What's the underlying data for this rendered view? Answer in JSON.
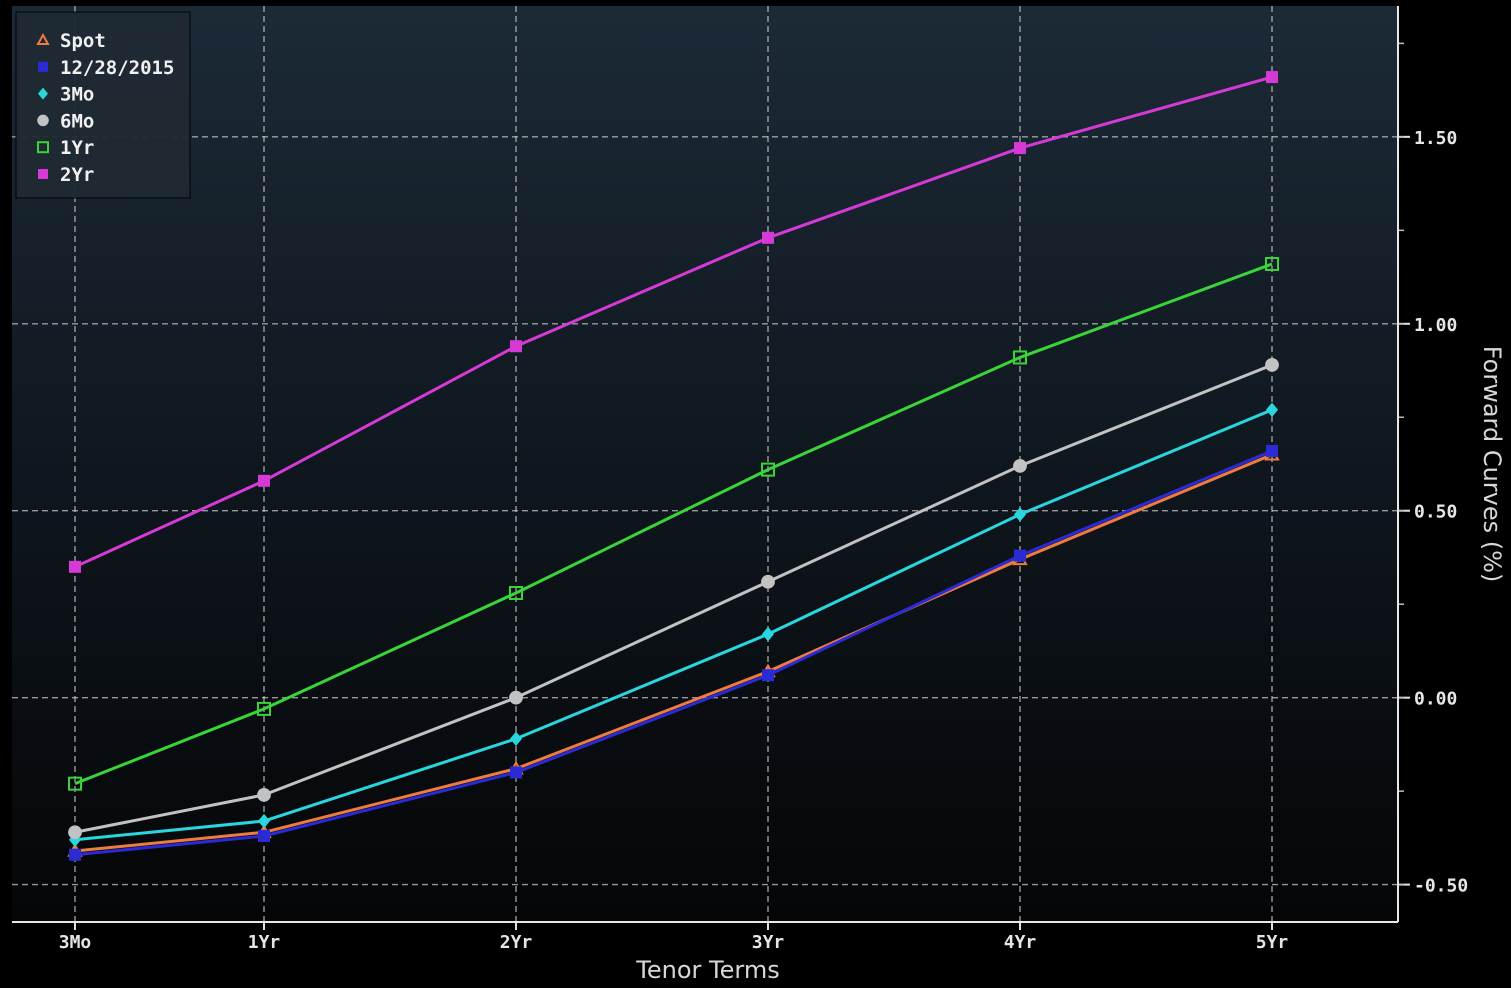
{
  "chart_data": {
    "type": "line",
    "xlabel": "Tenor Terms",
    "ylabel": "Forward Curves (%)",
    "categories": [
      "3Mo",
      "1Yr",
      "2Yr",
      "3Yr",
      "4Yr",
      "5Yr"
    ],
    "x_positions": [
      0.25,
      1,
      2,
      3,
      4,
      5
    ],
    "xlim": [
      0,
      5.5
    ],
    "ylim": [
      -0.6,
      1.85
    ],
    "yticks": [
      -0.5,
      0,
      0.5,
      1.0,
      1.5
    ],
    "ytick_labels": [
      "-0.50",
      "0.00",
      "0.50",
      "1.00",
      "1.50"
    ],
    "grid": true,
    "legend_position": "top-left",
    "series": [
      {
        "name": "Spot",
        "color": "#f07b3f",
        "marker": "triangle-open",
        "values": [
          -0.41,
          -0.36,
          -0.19,
          0.07,
          0.37,
          0.65
        ]
      },
      {
        "name": "12/28/2015",
        "color": "#2b2bd6",
        "marker": "square-filled",
        "values": [
          -0.42,
          -0.37,
          -0.2,
          0.06,
          0.38,
          0.66
        ]
      },
      {
        "name": "3Mo",
        "color": "#29d6de",
        "marker": "diamond",
        "values": [
          -0.38,
          -0.33,
          -0.11,
          0.17,
          0.49,
          0.77
        ]
      },
      {
        "name": "6Mo",
        "color": "#c2c2c2",
        "marker": "circle",
        "values": [
          -0.36,
          -0.26,
          0.0,
          0.31,
          0.62,
          0.89
        ]
      },
      {
        "name": "1Yr",
        "color": "#3ad43a",
        "marker": "square-open",
        "values": [
          -0.23,
          -0.03,
          0.28,
          0.61,
          0.91,
          1.16
        ]
      },
      {
        "name": "2Yr",
        "color": "#d63ad6",
        "marker": "square-filled",
        "values": [
          0.35,
          0.58,
          0.94,
          1.23,
          1.47,
          1.66
        ]
      }
    ]
  }
}
